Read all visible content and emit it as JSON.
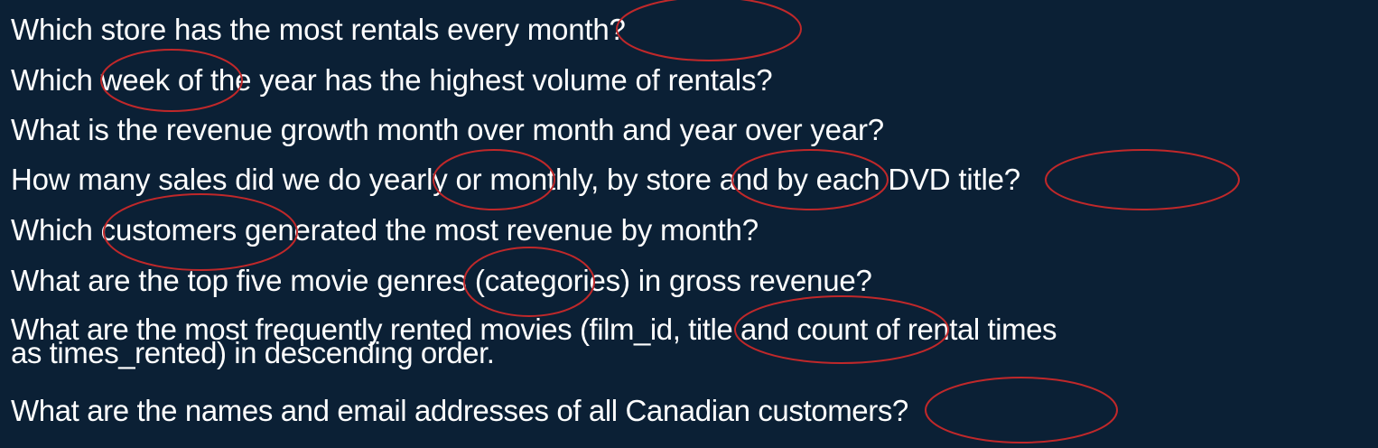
{
  "questions": [
    "Which store has the most rentals every month?",
    "Which week of the year has the highest volume of rentals?",
    "What is the revenue growth month over month and year over year?",
    "How many sales did we do yearly or monthly, by store and by each DVD title?",
    "Which customers generated the most revenue by month?",
    "What are the top five movie genres (categories) in gross revenue?",
    {
      "line1": "What are  the most frequently rented movies (film_id, title and count of rental times",
      "line2": "as times_rented) in descending order."
    },
    "What are the names and email addresses of all Canadian customers?"
  ],
  "annotations": {
    "color": "#c0282a",
    "circled_terms": [
      "month",
      "week",
      "yearly",
      "by store",
      "DVD title",
      "customers",
      "genres",
      "film_id, title",
      "customers"
    ]
  },
  "colors": {
    "background": "#0b2035",
    "text": "#ffffff"
  }
}
